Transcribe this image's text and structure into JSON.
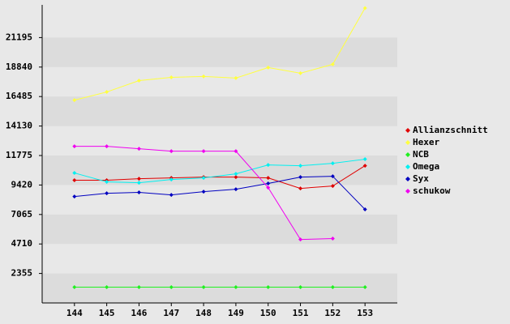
{
  "chart_data": {
    "type": "line",
    "x": [
      144,
      145,
      146,
      147,
      148,
      149,
      150,
      151,
      152,
      153
    ],
    "xlim": [
      143,
      154
    ],
    "xticks": [
      144,
      145,
      146,
      147,
      148,
      149,
      150,
      151,
      152,
      153
    ],
    "ylim": [
      0,
      23550
    ],
    "yticks": [
      2355,
      4710,
      7065,
      9420,
      11775,
      14130,
      16485,
      18840,
      21195
    ],
    "grid": true,
    "legend": "right",
    "series": [
      {
        "name": "Allianzschnitt",
        "color": "#e00000",
        "values": [
          9800,
          9800,
          9920,
          9990,
          10050,
          10050,
          9990,
          9150,
          9340,
          10960
        ]
      },
      {
        "name": "Hexer",
        "color": "#ffff40",
        "values": [
          16200,
          16850,
          17760,
          18020,
          18090,
          17960,
          18800,
          18350,
          19060,
          23550
        ]
      },
      {
        "name": "NCB",
        "color": "#20f020",
        "values": [
          1260,
          1260,
          1260,
          1260,
          1260,
          1260,
          1260,
          1260,
          1260,
          1260
        ]
      },
      {
        "name": "Omega",
        "color": "#00f0f0",
        "values": [
          10380,
          9670,
          9600,
          9860,
          9990,
          10310,
          11020,
          10960,
          11150,
          11480
        ]
      },
      {
        "name": "Syx",
        "color": "#0000c0",
        "values": [
          8500,
          8760,
          8830,
          8630,
          8890,
          9080,
          9540,
          10050,
          10120,
          7470
        ]
      },
      {
        "name": "schukow",
        "color": "#f000f0",
        "values": [
          12510,
          12510,
          12320,
          12120,
          12120,
          12120,
          9210,
          5070,
          5140,
          null
        ]
      }
    ]
  }
}
